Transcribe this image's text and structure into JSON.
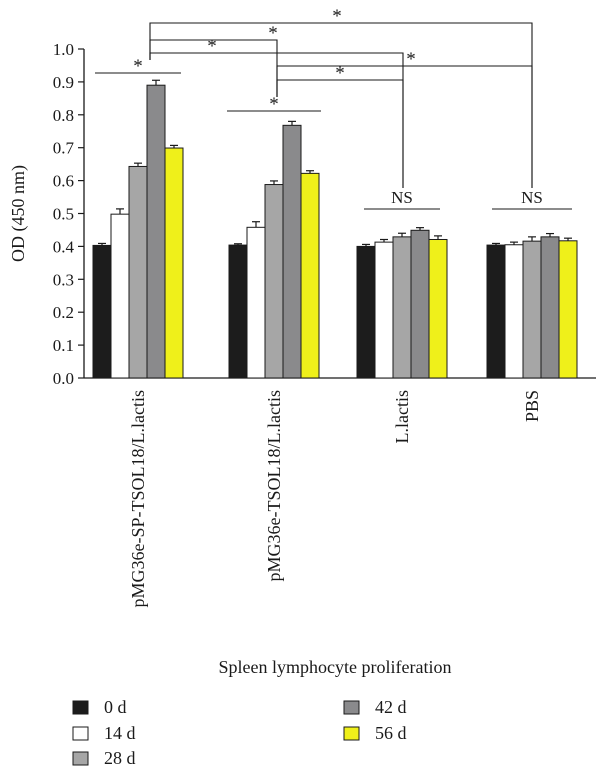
{
  "chart_data": {
    "type": "bar",
    "title": "Spleen lymphocyte proliferation",
    "ylabel": "OD (450 nm)",
    "xlabel": "",
    "ylim": [
      0,
      1.0
    ],
    "yticks": [
      "0.0",
      "0.1",
      "0.2",
      "0.3",
      "0.4",
      "0.5",
      "0.6",
      "0.7",
      "0.8",
      "0.9",
      "1.0"
    ],
    "categories": [
      "pMG36e-SP-TSOL18/L.lactis",
      "pMG36e-TSOL18/L.lactis",
      "L.lactis",
      "PBS"
    ],
    "series": [
      {
        "name": "0 d",
        "color": "#1c1c1c",
        "values": [
          0.403,
          0.404,
          0.4,
          0.404
        ],
        "errors": [
          0.006,
          0.004,
          0.006,
          0.005
        ]
      },
      {
        "name": "14 d",
        "color": "#ffffff",
        "values": [
          0.498,
          0.458,
          0.413,
          0.405
        ],
        "errors": [
          0.016,
          0.017,
          0.008,
          0.008
        ]
      },
      {
        "name": "28 d",
        "color": "#a6a6a6",
        "values": [
          0.643,
          0.588,
          0.429,
          0.416
        ],
        "errors": [
          0.01,
          0.011,
          0.011,
          0.013
        ]
      },
      {
        "name": "42 d",
        "color": "#8a8a8c",
        "values": [
          0.89,
          0.768,
          0.449,
          0.429
        ],
        "errors": [
          0.015,
          0.012,
          0.008,
          0.01
        ]
      },
      {
        "name": "56 d",
        "color": "#eff01a",
        "values": [
          0.699,
          0.622,
          0.421,
          0.417
        ],
        "errors": [
          0.008,
          0.008,
          0.011,
          0.008
        ]
      }
    ],
    "group_annotations": [
      "*",
      "*",
      "NS",
      "NS"
    ],
    "comparisons": [
      {
        "from": 0,
        "to": 3,
        "label": "*"
      },
      {
        "from": 0,
        "to": 1,
        "label": "*"
      },
      {
        "from": 0,
        "to": 2,
        "label": "*"
      },
      {
        "from": 1,
        "to": 3,
        "label": "*"
      },
      {
        "from": 1,
        "to": 2,
        "label": "*"
      }
    ],
    "legend_position": "bottom-left",
    "grid": false
  }
}
